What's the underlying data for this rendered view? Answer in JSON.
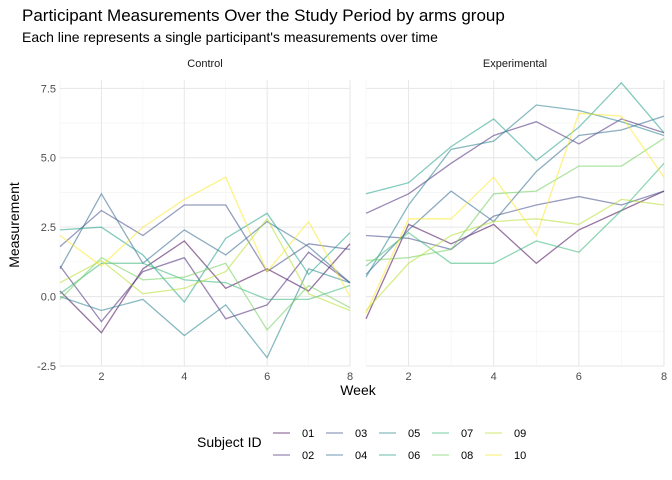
{
  "title": "Participant Measurements Over the Study Period by arms group",
  "subtitle": "Each line represents a single participant's measurements over time",
  "chart_data": {
    "type": "line",
    "title": "Participant Measurements Over the Study Period by arms group",
    "subtitle": "Each line represents a single participant's measurements over time",
    "xlabel": "Week",
    "ylabel": "Measurement",
    "x": [
      1,
      2,
      3,
      4,
      5,
      6,
      7,
      8
    ],
    "xlim": [
      1,
      8
    ],
    "ylim": [
      -2.5,
      7.8
    ],
    "x_ticks": [
      2,
      4,
      6,
      8
    ],
    "y_ticks": [
      -2.5,
      0.0,
      2.5,
      5.0,
      7.5
    ],
    "y_tick_labels": [
      "-2.5",
      "0.0",
      "2.5",
      "5.0",
      "7.5"
    ],
    "grid": true,
    "legend": {
      "title": "Subject ID",
      "placement": "bottom",
      "entries": [
        "01",
        "02",
        "03",
        "04",
        "05",
        "06",
        "07",
        "08",
        "09",
        "10"
      ],
      "colors": [
        "#440154",
        "#482878",
        "#3E4A89",
        "#31688E",
        "#26828E",
        "#1F9E89",
        "#35B779",
        "#6DCD59",
        "#B4DE2C",
        "#FDE725"
      ]
    },
    "facets": [
      {
        "label": "Control",
        "series": [
          {
            "name": "01",
            "values": [
              0.2,
              -1.3,
              1.0,
              2.0,
              0.3,
              1.0,
              0.2,
              1.9
            ]
          },
          {
            "name": "02",
            "values": [
              1.1,
              -0.9,
              0.9,
              1.4,
              -0.8,
              -0.3,
              1.6,
              0.5
            ]
          },
          {
            "name": "03",
            "values": [
              1.8,
              3.1,
              2.2,
              3.3,
              3.3,
              0.9,
              1.9,
              1.7
            ]
          },
          {
            "name": "04",
            "values": [
              1.0,
              3.7,
              1.2,
              2.4,
              1.5,
              2.7,
              1.8,
              0.5
            ]
          },
          {
            "name": "05",
            "values": [
              0.0,
              -0.5,
              -0.1,
              -1.4,
              -0.3,
              -2.2,
              1.0,
              0.5
            ]
          },
          {
            "name": "06",
            "values": [
              2.4,
              2.5,
              1.5,
              -0.2,
              2.1,
              3.0,
              0.8,
              2.3
            ]
          },
          {
            "name": "07",
            "values": [
              0.1,
              1.2,
              1.2,
              0.6,
              0.5,
              -0.1,
              -0.1,
              0.4
            ]
          },
          {
            "name": "08",
            "values": [
              -0.1,
              1.4,
              0.6,
              0.7,
              1.2,
              -1.2,
              0.4,
              -0.4
            ]
          },
          {
            "name": "09",
            "values": [
              0.5,
              1.3,
              0.1,
              0.3,
              0.9,
              2.8,
              0.1,
              -0.5
            ]
          },
          {
            "name": "10",
            "values": [
              2.2,
              1.1,
              2.5,
              3.5,
              4.3,
              0.9,
              2.7,
              0.0
            ]
          }
        ]
      },
      {
        "label": "Experimental",
        "series": [
          {
            "name": "01",
            "values": [
              -0.8,
              2.6,
              1.9,
              2.6,
              1.2,
              2.4,
              3.1,
              3.8
            ]
          },
          {
            "name": "02",
            "values": [
              3.0,
              3.7,
              4.8,
              5.8,
              6.3,
              5.5,
              6.4,
              5.9
            ]
          },
          {
            "name": "03",
            "values": [
              2.2,
              2.1,
              1.7,
              2.9,
              3.3,
              3.6,
              3.3,
              3.8
            ]
          },
          {
            "name": "04",
            "values": [
              0.8,
              2.4,
              3.8,
              2.7,
              4.5,
              5.8,
              6.0,
              6.5
            ]
          },
          {
            "name": "05",
            "values": [
              0.7,
              3.3,
              5.3,
              5.6,
              6.9,
              6.7,
              6.3,
              5.8
            ]
          },
          {
            "name": "06",
            "values": [
              3.7,
              4.1,
              5.4,
              6.4,
              4.9,
              6.1,
              7.7,
              5.9
            ]
          },
          {
            "name": "07",
            "values": [
              1.1,
              2.3,
              1.2,
              1.2,
              2.0,
              1.6,
              3.1,
              4.8
            ]
          },
          {
            "name": "08",
            "values": [
              1.3,
              1.4,
              1.7,
              3.7,
              3.8,
              4.7,
              4.7,
              5.7
            ]
          },
          {
            "name": "09",
            "values": [
              -0.5,
              1.2,
              2.2,
              2.7,
              2.8,
              2.6,
              3.5,
              3.3
            ]
          },
          {
            "name": "10",
            "values": [
              -0.6,
              2.8,
              2.8,
              4.3,
              2.2,
              6.6,
              6.5,
              4.3
            ]
          }
        ]
      }
    ]
  }
}
